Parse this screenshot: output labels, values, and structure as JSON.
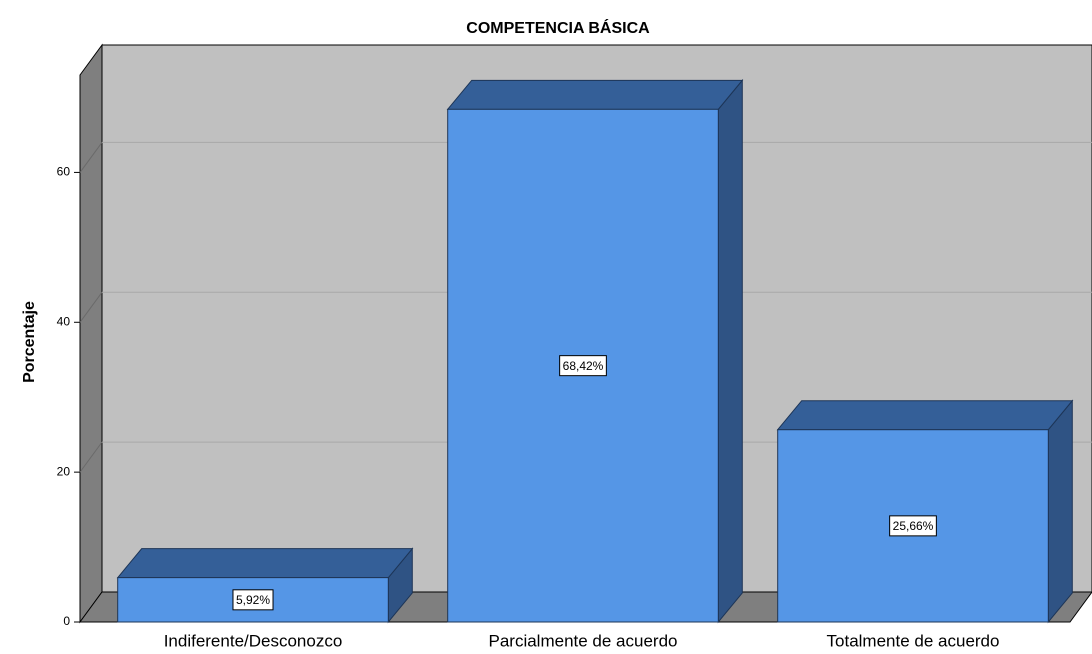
{
  "chart_data": {
    "type": "bar3d",
    "title": "COMPETENCIA BÁSICA",
    "y_label": "Porcentaje",
    "categories": [
      "Indiferente/Desconozco",
      "Parcialmente de acuerdo",
      "Totalmente de acuerdo"
    ],
    "values": [
      5.92,
      68.42,
      25.66
    ],
    "value_labels": [
      "5,92%",
      "68,42%",
      "25,66%"
    ],
    "color": "#5596e6",
    "ylim": [
      0,
      73
    ],
    "yticks": [
      0,
      20,
      40,
      60
    ],
    "grid": true
  }
}
